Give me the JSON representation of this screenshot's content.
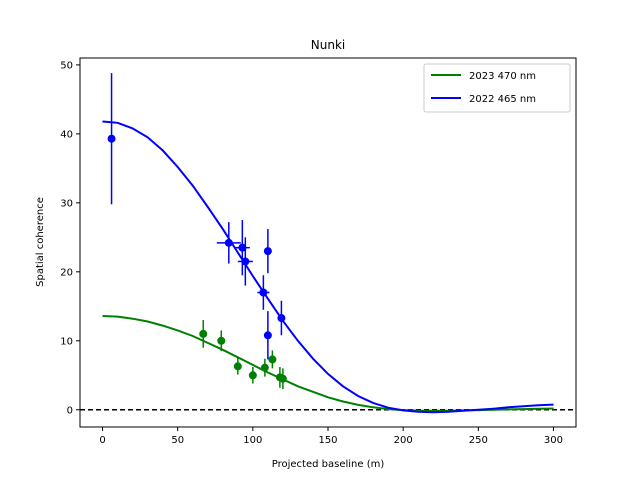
{
  "chart_data": {
    "type": "scatter",
    "title": "Nunki",
    "xlabel": "Projected baseline (m)",
    "ylabel": "Spatial coherence",
    "xlim": [
      -15,
      315
    ],
    "ylim": [
      -2.5,
      51
    ],
    "xticks": [
      0,
      50,
      100,
      150,
      200,
      250,
      300
    ],
    "yticks": [
      0,
      10,
      20,
      30,
      40,
      50
    ],
    "grid": false,
    "legend_position": "top-right",
    "reference_line": {
      "y": 0,
      "style": "dashed",
      "color": "#000000"
    },
    "series": [
      {
        "name": "2023 470 nm",
        "color": "#008000",
        "fit_curve": {
          "x": [
            0,
            10,
            20,
            30,
            40,
            50,
            60,
            70,
            80,
            90,
            100,
            110,
            120,
            130,
            140,
            150,
            160,
            170,
            180,
            190,
            200,
            210,
            220,
            230,
            240,
            250,
            260,
            270,
            280,
            290,
            300
          ],
          "y": [
            13.6,
            13.5,
            13.2,
            12.8,
            12.2,
            11.5,
            10.7,
            9.7,
            8.7,
            7.6,
            6.5,
            5.4,
            4.4,
            3.4,
            2.6,
            1.8,
            1.2,
            0.7,
            0.35,
            0.1,
            -0.05,
            -0.12,
            -0.14,
            -0.13,
            -0.1,
            -0.05,
            0.0,
            0.05,
            0.1,
            0.15,
            0.18
          ]
        },
        "points": [
          {
            "x": 67,
            "y": 11.0,
            "yerr": 2.0,
            "xerr": 0
          },
          {
            "x": 79,
            "y": 10.0,
            "yerr": 1.5,
            "xerr": 0
          },
          {
            "x": 90,
            "y": 6.3,
            "yerr": 1.2,
            "xerr": 0
          },
          {
            "x": 100,
            "y": 5.0,
            "yerr": 1.2,
            "xerr": 0
          },
          {
            "x": 108,
            "y": 6.1,
            "yerr": 1.3,
            "xerr": 0
          },
          {
            "x": 113,
            "y": 7.3,
            "yerr": 1.3,
            "xerr": 0
          },
          {
            "x": 118,
            "y": 4.7,
            "yerr": 1.5,
            "xerr": 0
          },
          {
            "x": 120,
            "y": 4.5,
            "yerr": 1.5,
            "xerr": 0
          }
        ]
      },
      {
        "name": "2022 465 nm",
        "color": "#0000ff",
        "fit_curve": {
          "x": [
            0,
            10,
            20,
            30,
            40,
            50,
            60,
            70,
            80,
            90,
            100,
            110,
            120,
            130,
            140,
            150,
            160,
            170,
            180,
            190,
            200,
            210,
            220,
            230,
            240,
            250,
            260,
            270,
            280,
            290,
            300
          ],
          "y": [
            41.8,
            41.6,
            40.8,
            39.5,
            37.6,
            35.2,
            32.5,
            29.4,
            26.2,
            22.8,
            19.4,
            16.1,
            12.9,
            10.0,
            7.4,
            5.2,
            3.4,
            2.0,
            1.0,
            0.3,
            -0.1,
            -0.3,
            -0.35,
            -0.3,
            -0.15,
            0.0,
            0.15,
            0.35,
            0.5,
            0.65,
            0.75
          ]
        },
        "points": [
          {
            "x": 6,
            "y": 39.3,
            "yerr": 9.5,
            "xerr": 0
          },
          {
            "x": 84,
            "y": 24.2,
            "yerr": 3.0,
            "xerr": 8
          },
          {
            "x": 93,
            "y": 23.5,
            "yerr": 4.0,
            "xerr": 5
          },
          {
            "x": 95,
            "y": 21.5,
            "yerr": 3.5,
            "xerr": 5
          },
          {
            "x": 107,
            "y": 17.0,
            "yerr": 2.5,
            "xerr": 4
          },
          {
            "x": 110,
            "y": 23.0,
            "yerr": 3.2,
            "xerr": 0
          },
          {
            "x": 110,
            "y": 10.8,
            "yerr": 3.5,
            "xerr": 0
          },
          {
            "x": 119,
            "y": 13.3,
            "yerr": 2.5,
            "xerr": 0
          }
        ]
      }
    ]
  }
}
